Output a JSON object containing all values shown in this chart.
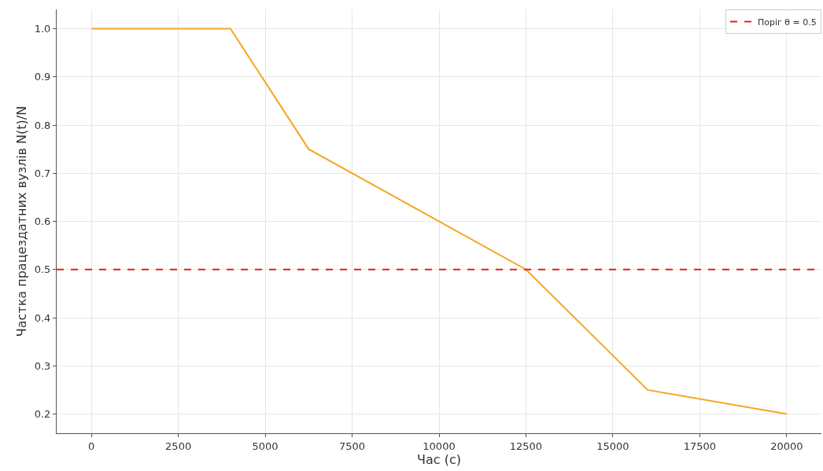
{
  "chart_data": {
    "type": "line",
    "xlabel": "Час (с)",
    "ylabel": "Частка працездатних вузлів N(t)/N",
    "x": [
      0,
      4000,
      6250,
      12500,
      16000,
      20000
    ],
    "series": [
      {
        "color": "#f5a623",
        "values": [
          1.0,
          1.0,
          0.75,
          0.5,
          0.25,
          0.2
        ]
      }
    ],
    "xlim": [
      -1000,
      21000
    ],
    "xticks": [
      0,
      2500,
      5000,
      7500,
      10000,
      12500,
      15000,
      17500,
      20000
    ],
    "ylim": [
      0.16,
      1.04
    ],
    "yticks": [
      0.2,
      0.3,
      0.4,
      0.5,
      0.6,
      0.7,
      0.8,
      0.9,
      {
        "value": 1,
        "label": "1.0"
      }
    ],
    "ref_lines": [
      {
        "axis": "y",
        "value": 0.5,
        "label": "Поріг θ = 0.5",
        "color": "#e02020",
        "line_style": "dashed"
      }
    ],
    "grid": true,
    "legend": "top right",
    "line_style": "solid",
    "marker": "none"
  }
}
